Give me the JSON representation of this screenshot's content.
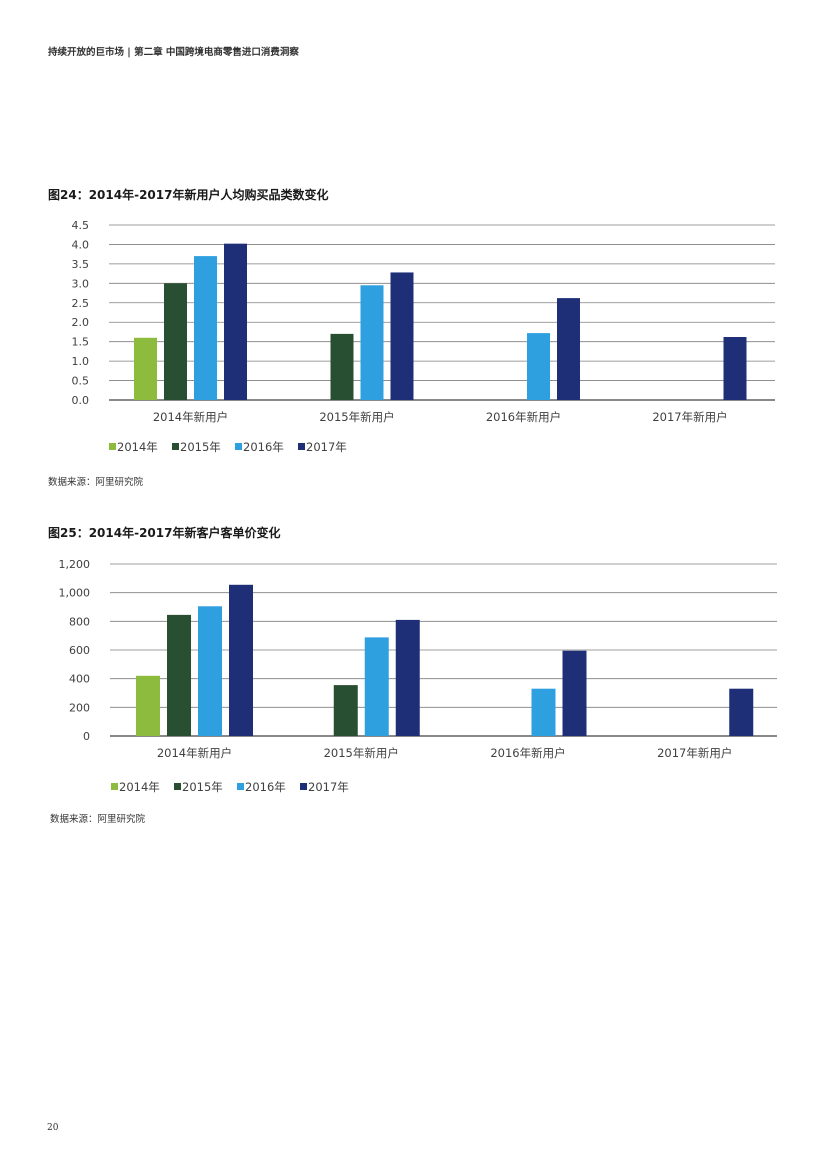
{
  "header": {
    "running_title": "持续开放的巨市场 | 第二章 中国跨境电商零售进口消费洞察"
  },
  "page_number": "20",
  "colors": {
    "s2014": "#8DBB3D",
    "s2015": "#284F31",
    "s2016": "#2E9FDF",
    "s2017": "#1E2F78",
    "grid": "#7F7F7F",
    "axis": "#404040"
  },
  "chart_data": [
    {
      "type": "bar",
      "title": "图24：2014年-2017年新用户人均购买品类数变化",
      "categories": [
        "2014年新用户",
        "2015年新用户",
        "2016年新用户",
        "2017年新用户"
      ],
      "series": [
        {
          "name": "2014年",
          "values": [
            1.6,
            null,
            null,
            null
          ]
        },
        {
          "name": "2015年",
          "values": [
            3.0,
            1.7,
            null,
            null
          ]
        },
        {
          "name": "2016年",
          "values": [
            3.7,
            2.95,
            1.72,
            null
          ]
        },
        {
          "name": "2017年",
          "values": [
            4.02,
            3.28,
            2.62,
            1.62
          ]
        }
      ],
      "ylim": [
        0,
        4.5
      ],
      "yticks": [
        "0.0",
        "0.5",
        "1.0",
        "1.5",
        "2.0",
        "2.5",
        "3.0",
        "3.5",
        "4.0",
        "4.5"
      ],
      "grid": true,
      "legend": "bottom-left",
      "source": "数据来源：阿里研究院"
    },
    {
      "type": "bar",
      "title": "图25：2014年-2017年新客户客单价变化",
      "categories": [
        "2014年新用户",
        "2015年新用户",
        "2016年新用户",
        "2017年新用户"
      ],
      "series": [
        {
          "name": "2014年",
          "values": [
            420,
            null,
            null,
            null
          ]
        },
        {
          "name": "2015年",
          "values": [
            845,
            355,
            null,
            null
          ]
        },
        {
          "name": "2016年",
          "values": [
            905,
            688,
            330,
            null
          ]
        },
        {
          "name": "2017年",
          "values": [
            1055,
            810,
            595,
            330
          ]
        }
      ],
      "ylim": [
        0,
        1200
      ],
      "yticks": [
        "0",
        "200",
        "400",
        "600",
        "800",
        "1,000",
        "1,200"
      ],
      "grid": true,
      "legend": "bottom-left",
      "source": "数据来源：阿里研究院"
    }
  ]
}
